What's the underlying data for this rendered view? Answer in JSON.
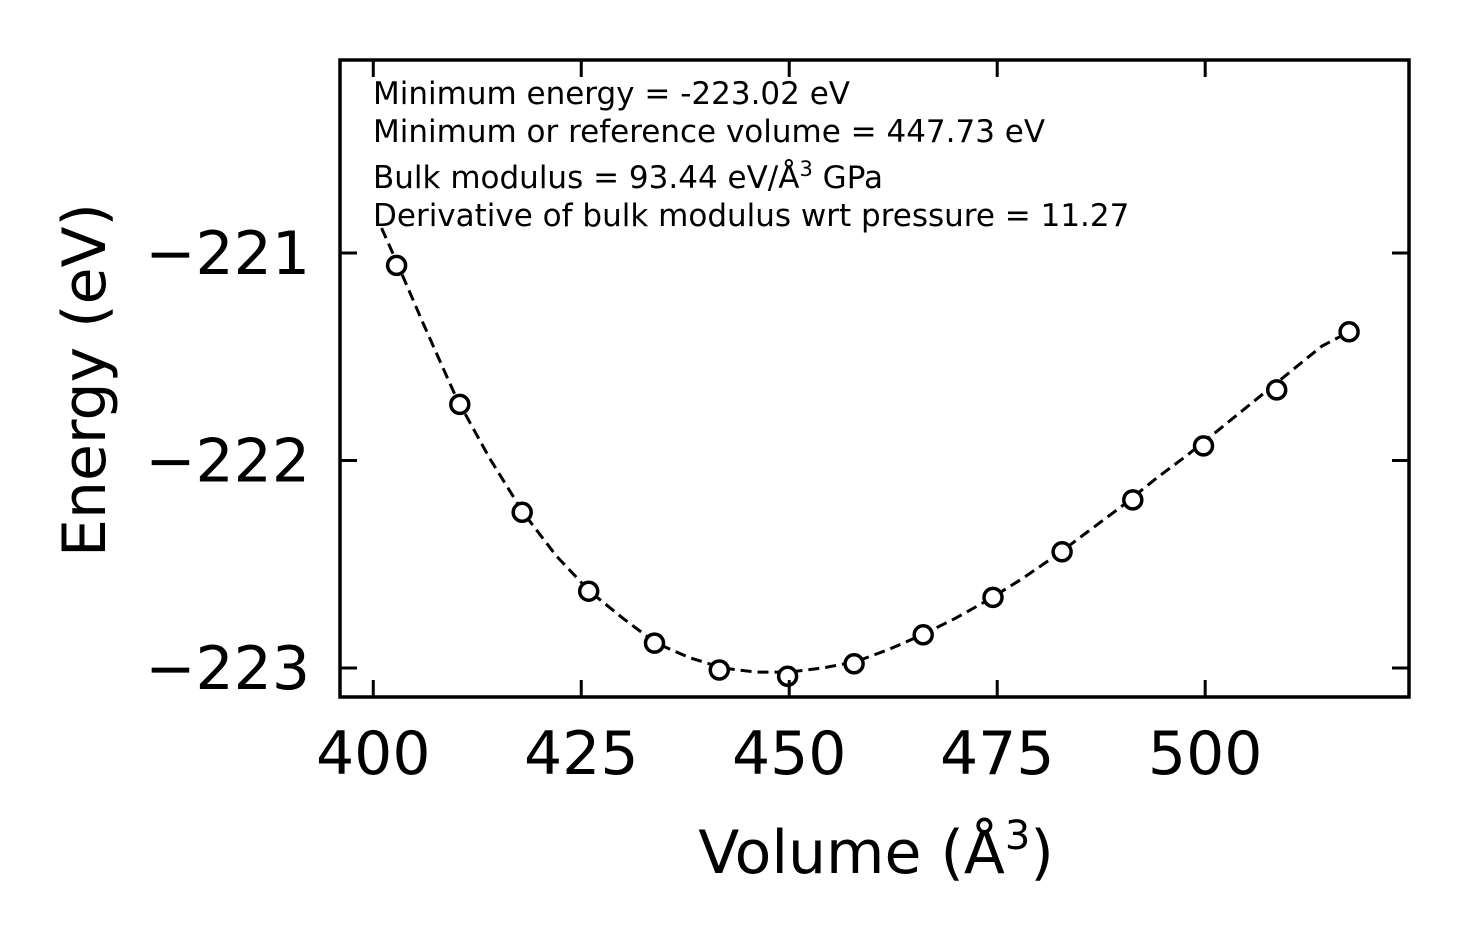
{
  "chart_data": {
    "type": "scatter",
    "title": "",
    "xlabel": "Volume (Å",
    "xlabel_sup": "3",
    "xlabel_close": ")",
    "ylabel": "Energy (eV)",
    "xlim": [
      396,
      524.5
    ],
    "ylim": [
      -223.14,
      -220.07
    ],
    "xticks": [
      400,
      425,
      450,
      475,
      500
    ],
    "xtick_labels": [
      "400",
      "425",
      "450",
      "475",
      "500"
    ],
    "yticks": [
      -221,
      -222,
      -223
    ],
    "ytick_labels": [
      "−221",
      "−222",
      "−223"
    ],
    "series": [
      {
        "name": "data",
        "marker": "open-circle",
        "x": [
          402.8,
          410.4,
          417.9,
          425.9,
          433.8,
          441.6,
          449.8,
          457.8,
          466.1,
          474.5,
          482.8,
          491.3,
          499.8,
          508.6,
          517.3
        ],
        "y": [
          -221.06,
          -221.73,
          -222.25,
          -222.63,
          -222.88,
          -223.01,
          -223.04,
          -222.98,
          -222.84,
          -222.66,
          -222.44,
          -222.19,
          -221.93,
          -221.66,
          -221.38
        ]
      },
      {
        "name": "fit",
        "style": "dashed",
        "x": [
          401,
          403,
          406,
          410,
          414,
          418,
          422,
          426,
          430,
          434,
          438,
          442,
          446,
          448,
          450,
          454,
          458,
          462,
          466,
          470,
          474,
          478,
          482,
          486,
          490,
          494,
          498,
          502,
          506,
          510,
          514,
          517.3
        ],
        "y": [
          -220.88,
          -221.06,
          -221.34,
          -221.7,
          -221.99,
          -222.25,
          -222.46,
          -222.63,
          -222.76,
          -222.88,
          -222.95,
          -223.0,
          -223.02,
          -223.02,
          -223.02,
          -223.0,
          -222.97,
          -222.91,
          -222.84,
          -222.76,
          -222.67,
          -222.57,
          -222.46,
          -222.34,
          -222.22,
          -222.09,
          -221.97,
          -221.84,
          -221.71,
          -221.58,
          -221.45,
          -221.38
        ]
      }
    ],
    "annotations": [
      "Minimum energy = -223.02 eV",
      "Minimum or reference volume = 447.73 eV",
      "Bulk modulus = 93.44 eV/Å",
      "Derivative of bulk modulus wrt pressure = 11.27"
    ],
    "annotation_sup": "3",
    "annotation_tail": " GPa",
    "grid": false,
    "legend": "none"
  }
}
